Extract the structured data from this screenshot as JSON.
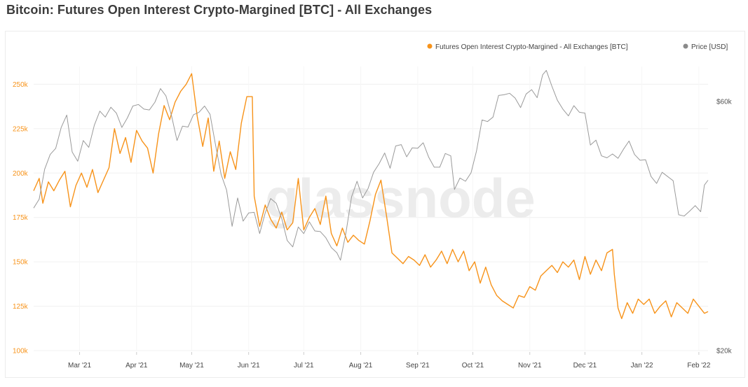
{
  "header": {
    "title": "Bitcoin: Futures Open Interest Crypto-Margined [BTC] - All Exchanges"
  },
  "watermark": "glassnode",
  "colors": {
    "oi": "#f7931a",
    "price": "#9a9a9a",
    "grid": "#f0f0f0",
    "left_axis_text": "#f7931a",
    "right_axis_text": "#555555",
    "month_text": "#444444"
  },
  "chart_data": {
    "type": "line",
    "title": "Bitcoin: Futures Open Interest Crypto-Margined [BTC] - All Exchanges",
    "legend_position": "top-right",
    "grid": true,
    "x_range": [
      "2021-02-04",
      "2022-02-06"
    ],
    "x_ticks": [
      {
        "date": "2021-03-01",
        "label": "Mar '21"
      },
      {
        "date": "2021-04-01",
        "label": "Apr '21"
      },
      {
        "date": "2021-05-01",
        "label": "May '21"
      },
      {
        "date": "2021-06-01",
        "label": "Jun '21"
      },
      {
        "date": "2021-07-01",
        "label": "Jul '21"
      },
      {
        "date": "2021-08-01",
        "label": "Aug '21"
      },
      {
        "date": "2021-09-01",
        "label": "Sep '21"
      },
      {
        "date": "2021-10-01",
        "label": "Oct '21"
      },
      {
        "date": "2021-11-01",
        "label": "Nov '21"
      },
      {
        "date": "2021-12-01",
        "label": "Dec '21"
      },
      {
        "date": "2022-01-01",
        "label": "Jan '22"
      },
      {
        "date": "2022-02-01",
        "label": "Feb '22"
      }
    ],
    "y_left": {
      "range": [
        100000,
        260000
      ],
      "ticks": [
        100000,
        125000,
        150000,
        175000,
        200000,
        225000,
        250000
      ],
      "tick_labels": [
        "100k",
        "125k",
        "150k",
        "175k",
        "200k",
        "225k",
        "250k"
      ]
    },
    "y_right": {
      "scale": "log",
      "range": [
        20000,
        70000
      ],
      "ticks": [
        20000,
        60000
      ],
      "tick_labels": [
        "$20k",
        "$60k"
      ]
    },
    "series": [
      {
        "name": "Futures Open Interest Crypto-Margined - All Exchanges [BTC]",
        "axis": "left",
        "points": [
          [
            "2021-02-04",
            190000
          ],
          [
            "2021-02-07",
            197000
          ],
          [
            "2021-02-09",
            183000
          ],
          [
            "2021-02-12",
            195000
          ],
          [
            "2021-02-15",
            190000
          ],
          [
            "2021-02-18",
            196000
          ],
          [
            "2021-02-21",
            201000
          ],
          [
            "2021-02-24",
            181000
          ],
          [
            "2021-02-27",
            193000
          ],
          [
            "2021-03-02",
            200000
          ],
          [
            "2021-03-05",
            192000
          ],
          [
            "2021-03-08",
            202000
          ],
          [
            "2021-03-11",
            189000
          ],
          [
            "2021-03-14",
            196000
          ],
          [
            "2021-03-17",
            203000
          ],
          [
            "2021-03-20",
            225000
          ],
          [
            "2021-03-23",
            211000
          ],
          [
            "2021-03-26",
            220000
          ],
          [
            "2021-03-29",
            206000
          ],
          [
            "2021-04-01",
            224000
          ],
          [
            "2021-04-04",
            218000
          ],
          [
            "2021-04-07",
            214000
          ],
          [
            "2021-04-10",
            200000
          ],
          [
            "2021-04-13",
            222000
          ],
          [
            "2021-04-16",
            238000
          ],
          [
            "2021-04-19",
            230000
          ],
          [
            "2021-04-22",
            240000
          ],
          [
            "2021-04-25",
            246000
          ],
          [
            "2021-04-28",
            250000
          ],
          [
            "2021-05-01",
            256000
          ],
          [
            "2021-05-04",
            232000
          ],
          [
            "2021-05-07",
            215000
          ],
          [
            "2021-05-10",
            231000
          ],
          [
            "2021-05-13",
            201000
          ],
          [
            "2021-05-16",
            218000
          ],
          [
            "2021-05-19",
            197000
          ],
          [
            "2021-05-22",
            212000
          ],
          [
            "2021-05-25",
            202000
          ],
          [
            "2021-05-28",
            228000
          ],
          [
            "2021-05-31",
            243000
          ],
          [
            "2021-06-03",
            243000
          ],
          [
            "2021-06-04",
            187000
          ],
          [
            "2021-06-07",
            170000
          ],
          [
            "2021-06-10",
            182000
          ],
          [
            "2021-06-13",
            174000
          ],
          [
            "2021-06-16",
            169000
          ],
          [
            "2021-06-19",
            178000
          ],
          [
            "2021-06-22",
            168000
          ],
          [
            "2021-06-25",
            172000
          ],
          [
            "2021-06-28",
            197000
          ],
          [
            "2021-07-01",
            168000
          ],
          [
            "2021-07-04",
            175000
          ],
          [
            "2021-07-07",
            180000
          ],
          [
            "2021-07-10",
            171000
          ],
          [
            "2021-07-13",
            187000
          ],
          [
            "2021-07-16",
            166000
          ],
          [
            "2021-07-19",
            159000
          ],
          [
            "2021-07-22",
            169000
          ],
          [
            "2021-07-25",
            161000
          ],
          [
            "2021-07-28",
            165000
          ],
          [
            "2021-07-31",
            162000
          ],
          [
            "2021-08-03",
            160000
          ],
          [
            "2021-08-06",
            173000
          ],
          [
            "2021-08-09",
            188000
          ],
          [
            "2021-08-12",
            196000
          ],
          [
            "2021-08-15",
            176000
          ],
          [
            "2021-08-18",
            155000
          ],
          [
            "2021-08-21",
            152000
          ],
          [
            "2021-08-24",
            149000
          ],
          [
            "2021-08-27",
            153000
          ],
          [
            "2021-08-30",
            151000
          ],
          [
            "2021-09-02",
            148000
          ],
          [
            "2021-09-05",
            154000
          ],
          [
            "2021-09-08",
            147000
          ],
          [
            "2021-09-11",
            151000
          ],
          [
            "2021-09-14",
            156000
          ],
          [
            "2021-09-17",
            149000
          ],
          [
            "2021-09-20",
            157000
          ],
          [
            "2021-09-23",
            150000
          ],
          [
            "2021-09-26",
            156000
          ],
          [
            "2021-09-29",
            145000
          ],
          [
            "2021-10-02",
            150000
          ],
          [
            "2021-10-05",
            138000
          ],
          [
            "2021-10-08",
            147000
          ],
          [
            "2021-10-11",
            137000
          ],
          [
            "2021-10-14",
            131000
          ],
          [
            "2021-10-17",
            128000
          ],
          [
            "2021-10-20",
            126000
          ],
          [
            "2021-10-23",
            124000
          ],
          [
            "2021-10-26",
            131000
          ],
          [
            "2021-10-29",
            130000
          ],
          [
            "2021-11-01",
            136000
          ],
          [
            "2021-11-04",
            134000
          ],
          [
            "2021-11-07",
            142000
          ],
          [
            "2021-11-10",
            145000
          ],
          [
            "2021-11-13",
            148000
          ],
          [
            "2021-11-16",
            144000
          ],
          [
            "2021-11-19",
            150000
          ],
          [
            "2021-11-22",
            147000
          ],
          [
            "2021-11-25",
            151000
          ],
          [
            "2021-11-28",
            140000
          ],
          [
            "2021-12-01",
            153000
          ],
          [
            "2021-12-04",
            143000
          ],
          [
            "2021-12-07",
            151000
          ],
          [
            "2021-12-10",
            145000
          ],
          [
            "2021-12-13",
            155000
          ],
          [
            "2021-12-16",
            157000
          ],
          [
            "2021-12-17",
            143000
          ],
          [
            "2021-12-19",
            124000
          ],
          [
            "2021-12-21",
            118000
          ],
          [
            "2021-12-24",
            127000
          ],
          [
            "2021-12-27",
            121000
          ],
          [
            "2021-12-30",
            129000
          ],
          [
            "2022-01-02",
            126000
          ],
          [
            "2022-01-05",
            129000
          ],
          [
            "2022-01-08",
            121000
          ],
          [
            "2022-01-11",
            125000
          ],
          [
            "2022-01-14",
            128000
          ],
          [
            "2022-01-17",
            119000
          ],
          [
            "2022-01-20",
            127000
          ],
          [
            "2022-01-23",
            124000
          ],
          [
            "2022-01-26",
            121000
          ],
          [
            "2022-01-29",
            129000
          ],
          [
            "2022-02-01",
            125000
          ],
          [
            "2022-02-04",
            121000
          ],
          [
            "2022-02-06",
            122000
          ]
        ]
      },
      {
        "name": "Price [USD]",
        "axis": "right",
        "points": [
          [
            "2021-02-04",
            37500
          ],
          [
            "2021-02-07",
            39000
          ],
          [
            "2021-02-10",
            44500
          ],
          [
            "2021-02-13",
            47500
          ],
          [
            "2021-02-16",
            48800
          ],
          [
            "2021-02-19",
            53500
          ],
          [
            "2021-02-22",
            56500
          ],
          [
            "2021-02-25",
            48000
          ],
          [
            "2021-02-28",
            46100
          ],
          [
            "2021-03-03",
            50500
          ],
          [
            "2021-03-06",
            49000
          ],
          [
            "2021-03-09",
            54000
          ],
          [
            "2021-03-12",
            57500
          ],
          [
            "2021-03-15",
            56000
          ],
          [
            "2021-03-18",
            58500
          ],
          [
            "2021-03-21",
            57000
          ],
          [
            "2021-03-24",
            53500
          ],
          [
            "2021-03-27",
            55800
          ],
          [
            "2021-03-30",
            58800
          ],
          [
            "2021-04-02",
            59200
          ],
          [
            "2021-04-05",
            58000
          ],
          [
            "2021-04-08",
            57800
          ],
          [
            "2021-04-11",
            59800
          ],
          [
            "2021-04-14",
            63500
          ],
          [
            "2021-04-17",
            61500
          ],
          [
            "2021-04-20",
            56400
          ],
          [
            "2021-04-23",
            50500
          ],
          [
            "2021-04-26",
            53800
          ],
          [
            "2021-04-29",
            53600
          ],
          [
            "2021-05-02",
            56600
          ],
          [
            "2021-05-05",
            57200
          ],
          [
            "2021-05-08",
            58800
          ],
          [
            "2021-05-11",
            56700
          ],
          [
            "2021-05-14",
            49500
          ],
          [
            "2021-05-17",
            43500
          ],
          [
            "2021-05-20",
            40600
          ],
          [
            "2021-05-23",
            34600
          ],
          [
            "2021-05-26",
            39200
          ],
          [
            "2021-05-29",
            35400
          ],
          [
            "2021-06-01",
            36700
          ],
          [
            "2021-06-04",
            36800
          ],
          [
            "2021-06-07",
            33500
          ],
          [
            "2021-06-10",
            36700
          ],
          [
            "2021-06-13",
            39100
          ],
          [
            "2021-06-16",
            38300
          ],
          [
            "2021-06-19",
            35800
          ],
          [
            "2021-06-22",
            32500
          ],
          [
            "2021-06-25",
            31600
          ],
          [
            "2021-06-28",
            34500
          ],
          [
            "2021-07-01",
            33500
          ],
          [
            "2021-07-04",
            35300
          ],
          [
            "2021-07-07",
            33900
          ],
          [
            "2021-07-10",
            33800
          ],
          [
            "2021-07-13",
            32900
          ],
          [
            "2021-07-16",
            31500
          ],
          [
            "2021-07-19",
            30800
          ],
          [
            "2021-07-21",
            29800
          ],
          [
            "2021-07-24",
            33700
          ],
          [
            "2021-07-27",
            39400
          ],
          [
            "2021-07-30",
            42200
          ],
          [
            "2021-08-02",
            39200
          ],
          [
            "2021-08-05",
            40900
          ],
          [
            "2021-08-08",
            43900
          ],
          [
            "2021-08-11",
            45600
          ],
          [
            "2021-08-14",
            47800
          ],
          [
            "2021-08-17",
            44700
          ],
          [
            "2021-08-20",
            49300
          ],
          [
            "2021-08-23",
            49600
          ],
          [
            "2021-08-26",
            47000
          ],
          [
            "2021-08-29",
            48900
          ],
          [
            "2021-09-01",
            48800
          ],
          [
            "2021-09-04",
            50000
          ],
          [
            "2021-09-07",
            46900
          ],
          [
            "2021-09-10",
            44900
          ],
          [
            "2021-09-13",
            44900
          ],
          [
            "2021-09-16",
            47700
          ],
          [
            "2021-09-19",
            47200
          ],
          [
            "2021-09-21",
            40700
          ],
          [
            "2021-09-24",
            42800
          ],
          [
            "2021-09-27",
            42200
          ],
          [
            "2021-09-30",
            43800
          ],
          [
            "2021-10-03",
            48200
          ],
          [
            "2021-10-06",
            55300
          ],
          [
            "2021-10-09",
            54900
          ],
          [
            "2021-10-12",
            56000
          ],
          [
            "2021-10-15",
            61600
          ],
          [
            "2021-10-18",
            61800
          ],
          [
            "2021-10-21",
            62200
          ],
          [
            "2021-10-24",
            60900
          ],
          [
            "2021-10-27",
            58400
          ],
          [
            "2021-10-30",
            62000
          ],
          [
            "2021-11-02",
            63200
          ],
          [
            "2021-11-05",
            61000
          ],
          [
            "2021-11-08",
            67500
          ],
          [
            "2021-11-10",
            68800
          ],
          [
            "2021-11-13",
            64200
          ],
          [
            "2021-11-16",
            60300
          ],
          [
            "2021-11-19",
            58000
          ],
          [
            "2021-11-22",
            56300
          ],
          [
            "2021-11-25",
            58900
          ],
          [
            "2021-11-28",
            57200
          ],
          [
            "2021-12-01",
            57000
          ],
          [
            "2021-12-04",
            49500
          ],
          [
            "2021-12-07",
            50600
          ],
          [
            "2021-12-10",
            47200
          ],
          [
            "2021-12-13",
            46800
          ],
          [
            "2021-12-16",
            47600
          ],
          [
            "2021-12-19",
            46700
          ],
          [
            "2021-12-22",
            48600
          ],
          [
            "2021-12-25",
            50400
          ],
          [
            "2021-12-28",
            47500
          ],
          [
            "2021-12-31",
            46300
          ],
          [
            "2022-01-03",
            46400
          ],
          [
            "2022-01-06",
            43100
          ],
          [
            "2022-01-09",
            41800
          ],
          [
            "2022-01-12",
            43900
          ],
          [
            "2022-01-15",
            43100
          ],
          [
            "2022-01-18",
            42300
          ],
          [
            "2022-01-21",
            36400
          ],
          [
            "2022-01-24",
            36200
          ],
          [
            "2022-01-27",
            37000
          ],
          [
            "2022-01-30",
            37900
          ],
          [
            "2022-02-02",
            36900
          ],
          [
            "2022-02-04",
            41500
          ],
          [
            "2022-02-06",
            42400
          ]
        ]
      }
    ]
  }
}
